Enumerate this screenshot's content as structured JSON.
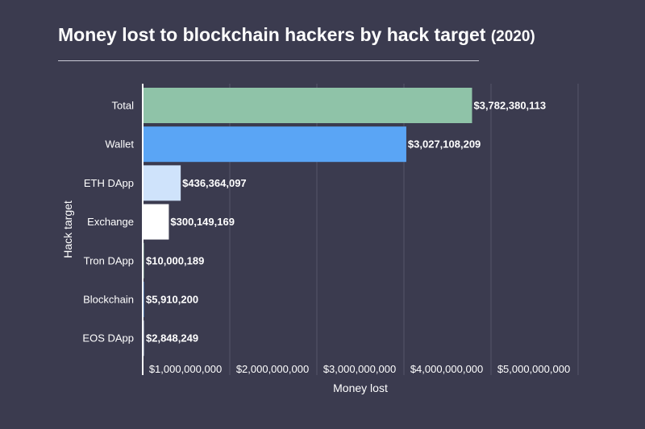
{
  "chart_data": {
    "type": "bar",
    "orientation": "horizontal",
    "title": "Money lost to blockchain hackers by hack target",
    "subtitle": "(2020)",
    "xlabel": "Money lost",
    "ylabel": "Hack target",
    "categories": [
      "Total",
      "Wallet",
      "ETH DApp",
      "Exchange",
      "Tron DApp",
      "Blockchain",
      "EOS DApp"
    ],
    "values": [
      3782380113,
      3027108209,
      436364097,
      300149169,
      10000189,
      5910200,
      2848249
    ],
    "value_labels": [
      "$3,782,380,113",
      "$3,027,108,209",
      "$436,364,097",
      "$300,149,169",
      "$10,000,189",
      "$5,910,200",
      "$2,848,249"
    ],
    "bar_colors": [
      "#8fc3a8",
      "#5aa5f5",
      "#cfe3fb",
      "#ffffff",
      "#8fc3a8",
      "#5aa5f5",
      "#cfe3fb"
    ],
    "xlim": [
      0,
      5000000000
    ],
    "xticks": [
      1000000000,
      2000000000,
      3000000000,
      4000000000,
      5000000000
    ],
    "xtick_labels": [
      "$1,000,000,000",
      "$2,000,000,000",
      "$3,000,000,000",
      "$4,000,000,000",
      "$5,000,000,000"
    ],
    "grid": true,
    "legend": "none"
  },
  "colors": {
    "background": "#3b3b4f",
    "gridline": "#55556a",
    "axis": "#ffffff",
    "text": "#ffffff"
  }
}
